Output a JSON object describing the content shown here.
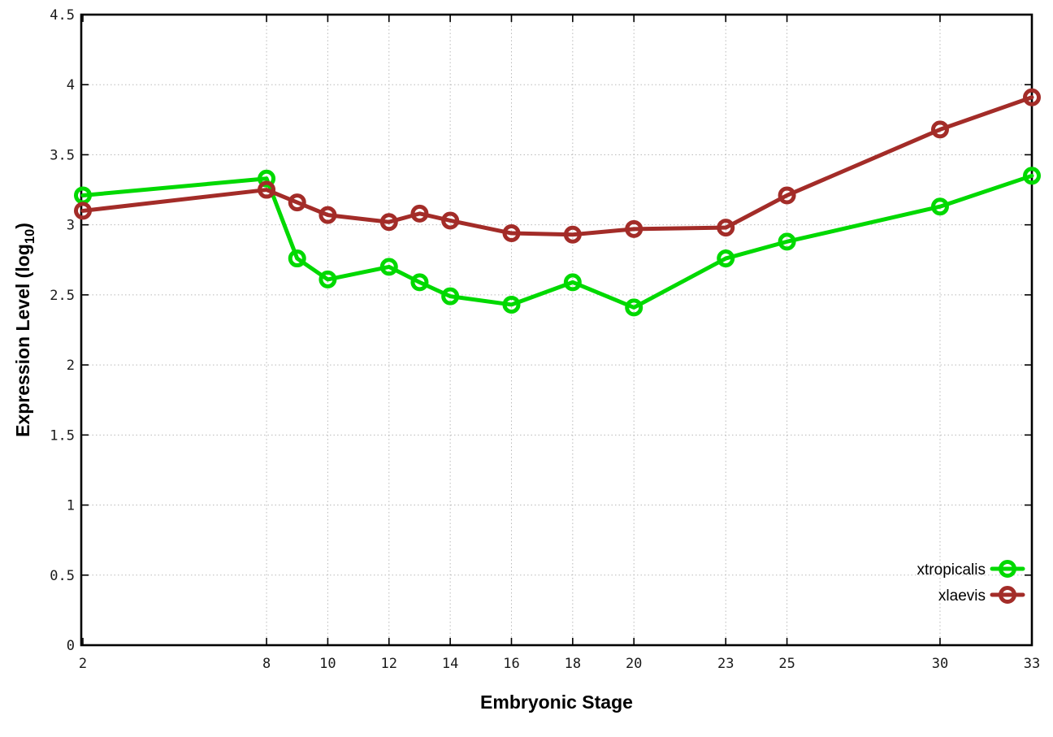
{
  "figure": {
    "background": "#ffffff",
    "ylabel_main": "Expression Level (log",
    "ylabel_sub": "10",
    "ylabel_end": ")"
  },
  "chart_data": {
    "type": "line",
    "title": "",
    "xlabel": "Embryonic Stage",
    "ylabel": "Expression Level (log10)",
    "x": [
      2,
      8,
      9,
      10,
      12,
      13,
      14,
      16,
      18,
      20,
      23,
      25,
      30,
      33
    ],
    "series": [
      {
        "name": "xtropicalis",
        "color": "#00d900",
        "values": [
          3.21,
          3.33,
          2.76,
          2.61,
          2.7,
          2.59,
          2.49,
          2.43,
          2.59,
          2.41,
          2.76,
          2.88,
          3.13,
          3.35
        ]
      },
      {
        "name": "xlaevis",
        "color": "#a32c28",
        "values": [
          3.1,
          3.25,
          3.16,
          3.07,
          3.02,
          3.08,
          3.03,
          2.94,
          2.93,
          2.97,
          2.98,
          3.21,
          3.68,
          3.91
        ]
      }
    ],
    "xlim": [
      2,
      33
    ],
    "ylim": [
      0,
      4.5
    ],
    "x_ticks": [
      {
        "v": 2,
        "label": "2"
      },
      {
        "v": 8,
        "label": "8"
      },
      {
        "v": 10,
        "label": "10"
      },
      {
        "v": 12,
        "label": "12"
      },
      {
        "v": 14,
        "label": "14"
      },
      {
        "v": 16,
        "label": "16"
      },
      {
        "v": 18,
        "label": "18"
      },
      {
        "v": 20,
        "label": "20"
      },
      {
        "v": 23,
        "label": "23"
      },
      {
        "v": 25,
        "label": "25"
      },
      {
        "v": 30,
        "label": "30"
      },
      {
        "v": 33,
        "label": "33"
      }
    ],
    "y_ticks": [
      {
        "v": 0,
        "label": "0"
      },
      {
        "v": 0.5,
        "label": "0.5"
      },
      {
        "v": 1,
        "label": "1"
      },
      {
        "v": 1.5,
        "label": "1.5"
      },
      {
        "v": 2,
        "label": "2"
      },
      {
        "v": 2.5,
        "label": "2.5"
      },
      {
        "v": 3,
        "label": "3"
      },
      {
        "v": 3.5,
        "label": "3.5"
      },
      {
        "v": 4,
        "label": "4"
      },
      {
        "v": 4.5,
        "label": "4.5"
      }
    ],
    "grid": true,
    "legend_position": "bottom-right",
    "marker": "open-circle",
    "line_width": 5,
    "marker_radius": 8.5,
    "marker_stroke": 5
  }
}
